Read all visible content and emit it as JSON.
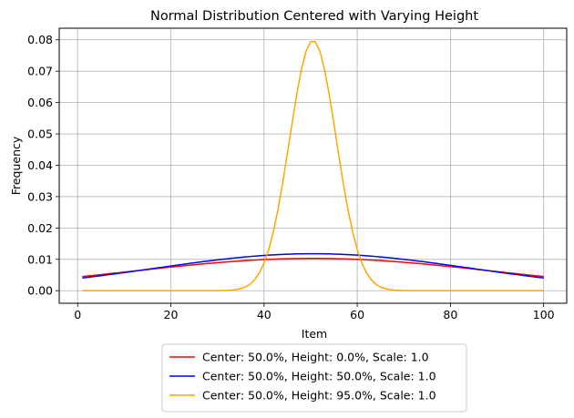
{
  "chart_data": {
    "type": "line",
    "title": "Normal Distribution Centered with Varying Height",
    "xlabel": "Item",
    "ylabel": "Frequency",
    "xlim": [
      -3.95,
      104.95
    ],
    "ylim": [
      -0.004,
      0.0837
    ],
    "x_ticks": [
      0,
      20,
      40,
      60,
      80,
      100
    ],
    "y_ticks": [
      0.0,
      0.01,
      0.02,
      0.03,
      0.04,
      0.05,
      0.06,
      0.07,
      0.08
    ],
    "grid": true,
    "legend_position": "bottom-center, outside",
    "x": {
      "start": 1,
      "end": 100,
      "step": 1
    },
    "series": [
      {
        "name": "Center: 50.0%, Height: 0.0%, Scale: 1.0",
        "color": "#ff0000",
        "distribution": "normal",
        "mean": 50.5,
        "sd": 38.6,
        "peak": 0.0103
      },
      {
        "name": "Center: 50.0%, Height: 50.0%, Scale: 1.0",
        "color": "#0000ff",
        "distribution": "normal",
        "mean": 50.5,
        "sd": 33.9,
        "peak": 0.0118
      },
      {
        "name": "Center: 50.0%, Height: 95.0%, Scale: 1.0",
        "color": "#ffa500",
        "distribution": "normal",
        "mean": 50.5,
        "sd": 5.0,
        "peak": 0.0798
      }
    ]
  }
}
